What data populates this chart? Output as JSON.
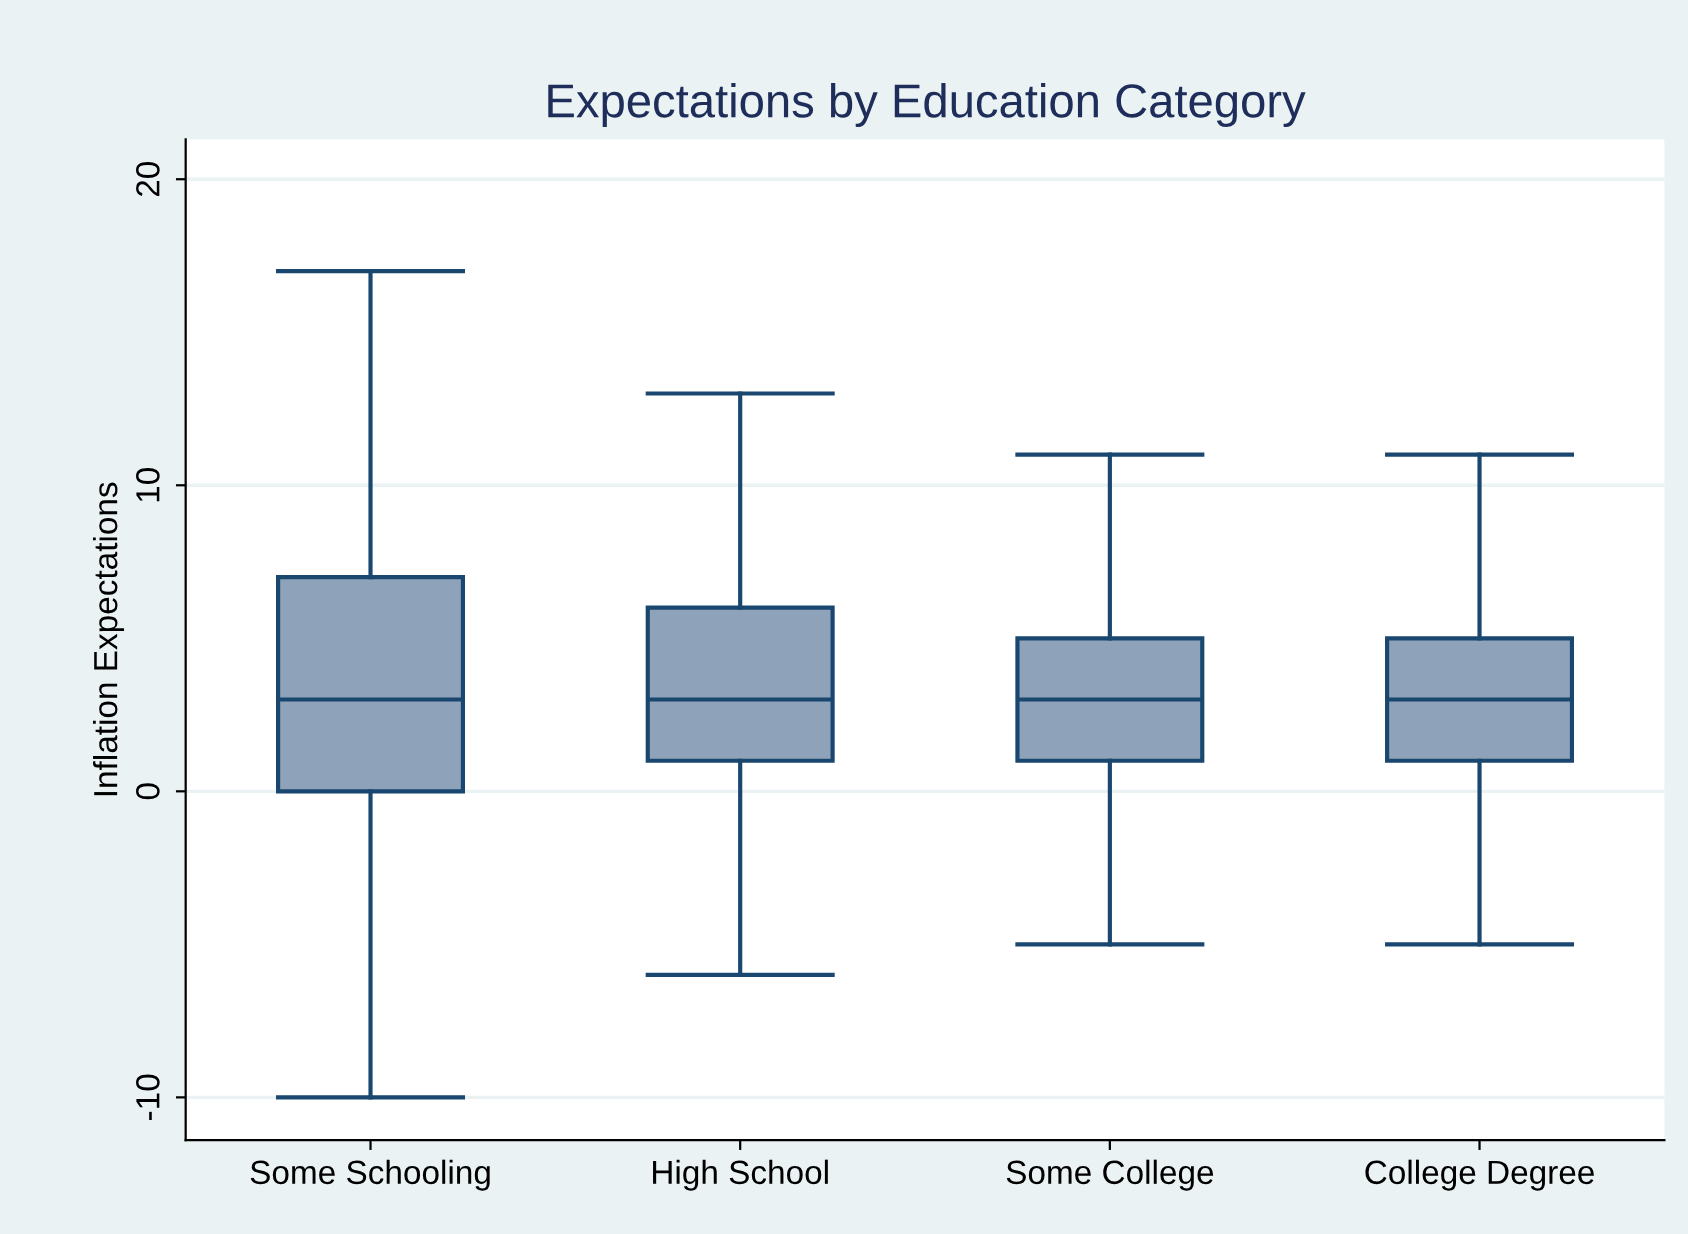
{
  "chart_data": {
    "type": "box",
    "title": "Expectations by Education Category",
    "ylabel": "Inflation Expectations",
    "categories": [
      "Some Schooling",
      "High School",
      "Some College",
      "College Degree"
    ],
    "series": [
      {
        "color": "#8ea3b9",
        "boxes": [
          {
            "low": -10,
            "q1": 0,
            "median": 3,
            "q3": 7,
            "high": 17
          },
          {
            "low": -6,
            "q1": 1,
            "median": 3,
            "q3": 6,
            "high": 13
          },
          {
            "low": -5,
            "q1": 1,
            "median": 3,
            "q3": 5,
            "high": 11
          },
          {
            "low": -5,
            "q1": 1,
            "median": 3,
            "q3": 5,
            "high": 11
          }
        ]
      }
    ],
    "ylim": [
      -11.4,
      21.3
    ],
    "yticks": [
      -10,
      0,
      10,
      20
    ],
    "grid": "y"
  }
}
